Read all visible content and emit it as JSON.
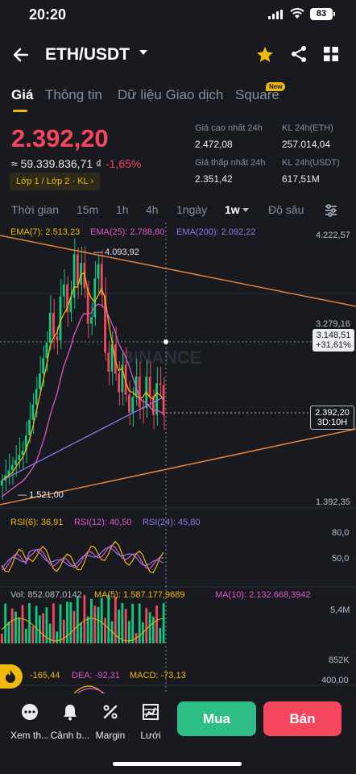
{
  "status_bar": {
    "time": "20:20",
    "battery": "83"
  },
  "header": {
    "pair": "ETH/USDT"
  },
  "tabs": [
    {
      "label": "Giá"
    },
    {
      "label": "Thông tin"
    },
    {
      "label": "Dữ liệu Giao dịch"
    },
    {
      "label": "Square",
      "badge": "New"
    }
  ],
  "ticker": {
    "last_price": "2.392,20",
    "fiat_value": "≈ 59.339.836,71 ₫",
    "change": "-1,65%",
    "layer_chip": "Lớp 1 / Lớp 2 · KL",
    "high_24h_label": "Giá cao nhất 24h",
    "high_24h": "2.472,08",
    "low_24h_label": "Giá thấp nhất 24h",
    "low_24h": "2.351,42",
    "vol_eth_label": "KL 24h(ETH)",
    "vol_eth": "257.014,04",
    "vol_usdt_label": "KL 24h(USDT)",
    "vol_usdt": "617,51M"
  },
  "intervals": {
    "items": [
      "Thời gian",
      "15m",
      "1h",
      "4h",
      "1ngày",
      "1w",
      "Độ sâu"
    ],
    "active": "1w"
  },
  "chart": {
    "watermark": "BINANCE",
    "ema7": "EMA(7): 2.513,23",
    "ema25": "EMA(25): 2.788,80",
    "ema200": "EMA(200): 2.092,22",
    "axis_top": "4.222,57",
    "axis_mid": "3.279,16",
    "axis_low": "1.392,35",
    "high_marker": "4.093,92",
    "low_marker": "1.521,00",
    "crosshair_price": "3.148,51",
    "crosshair_change": "+31,61%",
    "last_price_tag": "2.392,20",
    "countdown": "3D:10H",
    "colors": {
      "up": "#0ecb81",
      "down": "#f6465d",
      "ema7": "#f0b90b",
      "ema25": "#e056c8",
      "ema200": "#8c7ae6",
      "trend": "#f0883e"
    }
  },
  "rsi": {
    "rsi6": "RSI(6): 36,91",
    "rsi12": "RSI(12): 40,50",
    "rsi24": "RSI(24): 45,80",
    "axis_top": "80,0",
    "axis_bottom": "50,0"
  },
  "volume": {
    "vol": "Vol: 852.087,0142",
    "ma5": "MA(5): 1.587.177,9689",
    "ma10": "MA(10): 2.132.668,3942",
    "axis_top": "5,4M",
    "axis_bottom": "852K"
  },
  "macd": {
    "dif": "-165,44",
    "dea": "DEA: -92,31",
    "macd": "MACD: -73,13",
    "axis_top": "400,00"
  },
  "bottom_nav": {
    "more": "Xem th...",
    "alert": "Cảnh b...",
    "margin": "Margin",
    "grid": "Lưới",
    "buy": "Mua",
    "sell": "Bán"
  }
}
